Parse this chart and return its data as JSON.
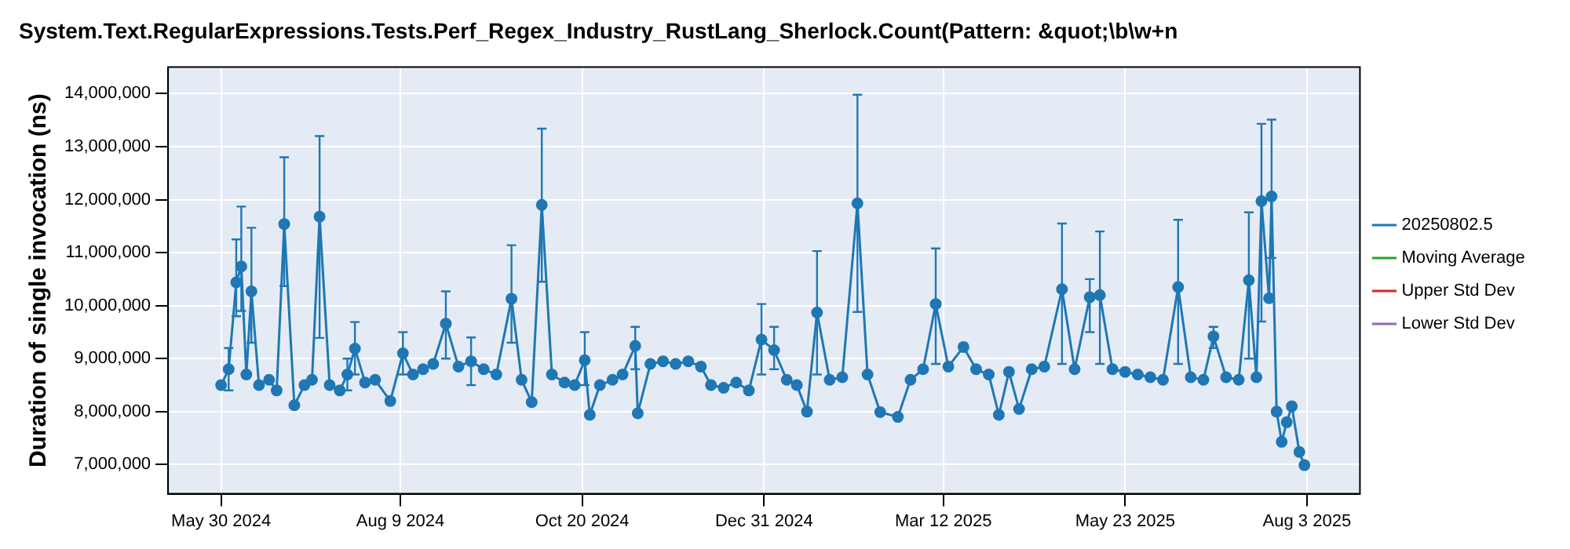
{
  "chart_data": {
    "type": "line",
    "title": "System.Text.RegularExpressions.Tests.Perf_Regex_Industry_RustLang_Sherlock.Count(Pattern: &quot;\\b\\w+n",
    "ylabel": "Duration of single invocation (ns)",
    "x": [
      "2024-05-30",
      "2024-06-02",
      "2024-06-05",
      "2024-06-07",
      "2024-06-09",
      "2024-06-11",
      "2024-06-14",
      "2024-06-18",
      "2024-06-21",
      "2024-06-24",
      "2024-06-28",
      "2024-07-02",
      "2024-07-05",
      "2024-07-08",
      "2024-07-12",
      "2024-07-16",
      "2024-07-19",
      "2024-07-22",
      "2024-07-26",
      "2024-07-30",
      "2024-08-05",
      "2024-08-10",
      "2024-08-14",
      "2024-08-18",
      "2024-08-22",
      "2024-08-27",
      "2024-09-01",
      "2024-09-06",
      "2024-09-11",
      "2024-09-16",
      "2024-09-22",
      "2024-09-26",
      "2024-09-30",
      "2024-10-04",
      "2024-10-08",
      "2024-10-13",
      "2024-10-17",
      "2024-10-21",
      "2024-10-23",
      "2024-10-27",
      "2024-11-01",
      "2024-11-05",
      "2024-11-10",
      "2024-11-11",
      "2024-11-16",
      "2024-11-21",
      "2024-11-26",
      "2024-12-01",
      "2024-12-06",
      "2024-12-10",
      "2024-12-15",
      "2024-12-20",
      "2024-12-25",
      "2024-12-30",
      "2025-01-04",
      "2025-01-09",
      "2025-01-13",
      "2025-01-17",
      "2025-01-21",
      "2025-01-26",
      "2025-01-31",
      "2025-02-06",
      "2025-02-10",
      "2025-02-15",
      "2025-02-22",
      "2025-02-27",
      "2025-03-04",
      "2025-03-09",
      "2025-03-14",
      "2025-03-20",
      "2025-03-25",
      "2025-03-30",
      "2025-04-03",
      "2025-04-07",
      "2025-04-11",
      "2025-04-16",
      "2025-04-21",
      "2025-04-28",
      "2025-05-03",
      "2025-05-09",
      "2025-05-13",
      "2025-05-18",
      "2025-05-23",
      "2025-05-28",
      "2025-06-02",
      "2025-06-07",
      "2025-06-13",
      "2025-06-18",
      "2025-06-23",
      "2025-06-27",
      "2025-07-02",
      "2025-07-07",
      "2025-07-11",
      "2025-07-14",
      "2025-07-16",
      "2025-07-19",
      "2025-07-20",
      "2025-07-22",
      "2025-07-24",
      "2025-07-26",
      "2025-07-28",
      "2025-07-31",
      "2025-08-02"
    ],
    "series": [
      {
        "name": "20250802.5",
        "color": "#1f77b4",
        "values": [
          8500000,
          8800000,
          10440000,
          10740000,
          8700000,
          10270000,
          8500000,
          8600000,
          8400000,
          11540000,
          8120000,
          8500000,
          8600000,
          11680000,
          8500000,
          8400000,
          8700000,
          9190000,
          8550000,
          8600000,
          8200000,
          9100000,
          8700000,
          8800000,
          8900000,
          9660000,
          8850000,
          8950000,
          8800000,
          8700000,
          10130000,
          8600000,
          8180000,
          11900000,
          8700000,
          8550000,
          8500000,
          8970000,
          7940000,
          8500000,
          8600000,
          8700000,
          9240000,
          7970000,
          8900000,
          8950000,
          8900000,
          8950000,
          8850000,
          8500000,
          8450000,
          8550000,
          8400000,
          9360000,
          9160000,
          8600000,
          8500000,
          8000000,
          9870000,
          8600000,
          8650000,
          11930000,
          8700000,
          7990000,
          7900000,
          8600000,
          8800000,
          10030000,
          8850000,
          9220000,
          8800000,
          8700000,
          7940000,
          8750000,
          8050000,
          8800000,
          8850000,
          10310000,
          8800000,
          10160000,
          10200000,
          8800000,
          8750000,
          8700000,
          8650000,
          8600000,
          10350000,
          8650000,
          8600000,
          9420000,
          8650000,
          8600000,
          10480000,
          8650000,
          11970000,
          10140000,
          12060000,
          8000000,
          7430000,
          7800000,
          8100000,
          7240000,
          6990000
        ],
        "errors": [
          null,
          [
            8400000,
            9200000
          ],
          [
            9800000,
            11250000
          ],
          [
            9900000,
            11870000
          ],
          null,
          [
            9300000,
            11470000
          ],
          null,
          null,
          null,
          [
            10370000,
            12800000
          ],
          null,
          null,
          null,
          [
            9390000,
            13200000
          ],
          null,
          null,
          [
            8400000,
            9000000
          ],
          [
            8700000,
            9690000
          ],
          null,
          null,
          null,
          [
            8700000,
            9500000
          ],
          null,
          null,
          null,
          [
            9000000,
            10270000
          ],
          null,
          [
            8500000,
            9400000
          ],
          null,
          null,
          [
            9300000,
            11140000
          ],
          null,
          null,
          [
            10450000,
            13340000
          ],
          null,
          null,
          null,
          [
            8500000,
            9500000
          ],
          null,
          null,
          null,
          null,
          [
            8800000,
            9600000
          ],
          null,
          null,
          null,
          null,
          null,
          null,
          null,
          null,
          null,
          null,
          [
            8700000,
            10030000
          ],
          [
            8800000,
            9600000
          ],
          null,
          null,
          null,
          [
            8700000,
            11030000
          ],
          null,
          null,
          [
            9880000,
            13980000
          ],
          null,
          null,
          null,
          null,
          null,
          [
            8900000,
            11080000
          ],
          null,
          null,
          null,
          null,
          null,
          null,
          null,
          null,
          null,
          [
            8900000,
            11550000
          ],
          null,
          [
            9500000,
            10500000
          ],
          [
            8900000,
            11400000
          ],
          null,
          null,
          null,
          null,
          null,
          [
            8900000,
            11620000
          ],
          null,
          null,
          [
            9200000,
            9600000
          ],
          null,
          null,
          [
            9000000,
            11760000
          ],
          null,
          [
            9700000,
            13430000
          ],
          null,
          [
            10900000,
            13510000
          ],
          null,
          null,
          null,
          null,
          null,
          null
        ]
      },
      {
        "name": "Moving Average",
        "color": "#2ca02c",
        "values": [
          null,
          null,
          null,
          null,
          null,
          null,
          null,
          null,
          null,
          null,
          null,
          null,
          null,
          null,
          null,
          null,
          null,
          null,
          null,
          null,
          null,
          null,
          null,
          null,
          null,
          null,
          null,
          null,
          null,
          null,
          null,
          null,
          null,
          null,
          null,
          null,
          null,
          null,
          null,
          null,
          null,
          null,
          null,
          null,
          null,
          null,
          null,
          null,
          null,
          null,
          null,
          null,
          null,
          null,
          null,
          null,
          null,
          null,
          null,
          null,
          null,
          null,
          null,
          null,
          null,
          null,
          null,
          null,
          null,
          null,
          null,
          null,
          null,
          null,
          null,
          null,
          null,
          null,
          null,
          null,
          null,
          null,
          null,
          null,
          null,
          null,
          null,
          null,
          null,
          null,
          null,
          null,
          null,
          null,
          null,
          null,
          null,
          null,
          null,
          null,
          null,
          null,
          null
        ]
      },
      {
        "name": "Upper Std Dev",
        "color": "#d62728",
        "values": [
          null,
          null,
          null,
          null,
          null,
          null,
          null,
          null,
          null,
          null,
          null,
          null,
          null,
          null,
          null,
          null,
          null,
          null,
          null,
          null,
          null,
          null,
          null,
          null,
          null,
          null,
          null,
          null,
          null,
          null,
          null,
          null,
          null,
          null,
          null,
          null,
          null,
          null,
          null,
          null,
          null,
          null,
          null,
          null,
          null,
          null,
          null,
          null,
          null,
          null,
          null,
          null,
          null,
          null,
          null,
          null,
          null,
          null,
          null,
          null,
          null,
          null,
          null,
          null,
          null,
          null,
          null,
          null,
          null,
          null,
          null,
          null,
          null,
          null,
          null,
          null,
          null,
          null,
          null,
          null,
          null,
          null,
          null,
          null,
          null,
          null,
          null,
          null,
          null,
          null,
          null,
          null,
          null,
          null,
          null,
          null,
          null,
          null,
          null,
          null,
          null,
          null,
          null
        ]
      },
      {
        "name": "Lower Std Dev",
        "color": "#9467bd",
        "values": [
          null,
          null,
          null,
          null,
          null,
          null,
          null,
          null,
          null,
          null,
          null,
          null,
          null,
          null,
          null,
          null,
          null,
          null,
          null,
          null,
          null,
          null,
          null,
          null,
          null,
          null,
          null,
          null,
          null,
          null,
          null,
          null,
          null,
          null,
          null,
          null,
          null,
          null,
          null,
          null,
          null,
          null,
          null,
          null,
          null,
          null,
          null,
          null,
          null,
          null,
          null,
          null,
          null,
          null,
          null,
          null,
          null,
          null,
          null,
          null,
          null,
          null,
          null,
          null,
          null,
          null,
          null,
          null,
          null,
          null,
          null,
          null,
          null,
          null,
          null,
          null,
          null,
          null,
          null,
          null,
          null,
          null,
          null,
          null,
          null,
          null,
          null,
          null,
          null,
          null,
          null,
          null,
          null,
          null,
          null,
          null,
          null,
          null,
          null,
          null,
          null,
          null,
          null
        ]
      }
    ],
    "xlim": [
      "2024-05-09",
      "2025-08-24"
    ],
    "xticks": [
      {
        "value": "2024-05-30",
        "label": "May 30 2024"
      },
      {
        "value": "2024-08-09",
        "label": "Aug 9 2024"
      },
      {
        "value": "2024-10-20",
        "label": "Oct 20 2024"
      },
      {
        "value": "2024-12-31",
        "label": "Dec 31 2024"
      },
      {
        "value": "2025-03-12",
        "label": "Mar 12 2025"
      },
      {
        "value": "2025-05-23",
        "label": "May 23 2025"
      },
      {
        "value": "2025-08-03",
        "label": "Aug 3 2025"
      }
    ],
    "ylim": [
      6450000,
      14500000
    ],
    "yticks": [
      {
        "value": 7000000,
        "label": "7,000,000"
      },
      {
        "value": 8000000,
        "label": "8,000,000"
      },
      {
        "value": 9000000,
        "label": "9,000,000"
      },
      {
        "value": 10000000,
        "label": "10,000,000"
      },
      {
        "value": 11000000,
        "label": "11,000,000"
      },
      {
        "value": 12000000,
        "label": "12,000,000"
      },
      {
        "value": 13000000,
        "label": "13,000,000"
      },
      {
        "value": 14000000,
        "label": "14,000,000"
      }
    ],
    "grid": true,
    "legend": "right",
    "marker": "circle",
    "line_style": "solid"
  }
}
